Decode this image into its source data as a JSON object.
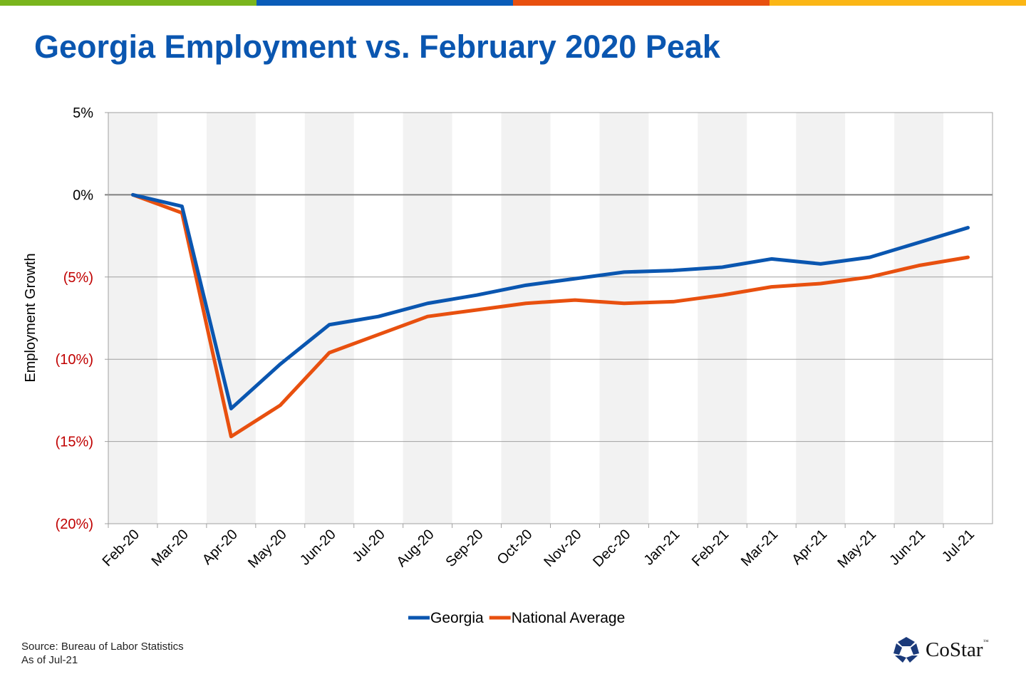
{
  "brand_bar_colors": [
    "#7ab51d",
    "#0a5cb8",
    "#e8500f",
    "#fbb615"
  ],
  "title": "Georgia Employment vs. February 2020 Peak",
  "source": "Source: Bureau of Labor Statistics",
  "as_of": "As of Jul-21",
  "logo": {
    "text": "CoStar",
    "trademark": "™",
    "icon": "costar-star-icon"
  },
  "chart_data": {
    "type": "line",
    "title": "",
    "xlabel": "",
    "ylabel": "Employment Growth",
    "ylim": [
      -20,
      5
    ],
    "yticks": [
      5,
      0,
      -5,
      -10,
      -15,
      -20
    ],
    "ytick_labels": [
      "5%",
      "0%",
      "(5%)",
      "(10%)",
      "(15%)",
      "(20%)"
    ],
    "negative_label_color": "#c00000",
    "alternating_column_shading": true,
    "grid": true,
    "legend_position": "bottom",
    "categories": [
      "Feb-20",
      "Mar-20",
      "Apr-20",
      "May-20",
      "Jun-20",
      "Jul-20",
      "Aug-20",
      "Sep-20",
      "Oct-20",
      "Nov-20",
      "Dec-20",
      "Jan-21",
      "Feb-21",
      "Mar-21",
      "Apr-21",
      "May-21",
      "Jun-21",
      "Jul-21"
    ],
    "series": [
      {
        "name": "Georgia",
        "color": "#0a56b0",
        "values": [
          0,
          -0.7,
          -13.0,
          -10.3,
          -7.9,
          -7.4,
          -6.6,
          -6.1,
          -5.5,
          -5.1,
          -4.7,
          -4.6,
          -4.4,
          -3.9,
          -4.2,
          -3.8,
          -2.9,
          -2.0
        ]
      },
      {
        "name": "National Average",
        "color": "#e8500f",
        "values": [
          0,
          -1.1,
          -14.7,
          -12.8,
          -9.6,
          -8.5,
          -7.4,
          -7.0,
          -6.6,
          -6.4,
          -6.6,
          -6.5,
          -6.1,
          -5.6,
          -5.4,
          -5.0,
          -4.3,
          -3.8
        ]
      }
    ]
  }
}
